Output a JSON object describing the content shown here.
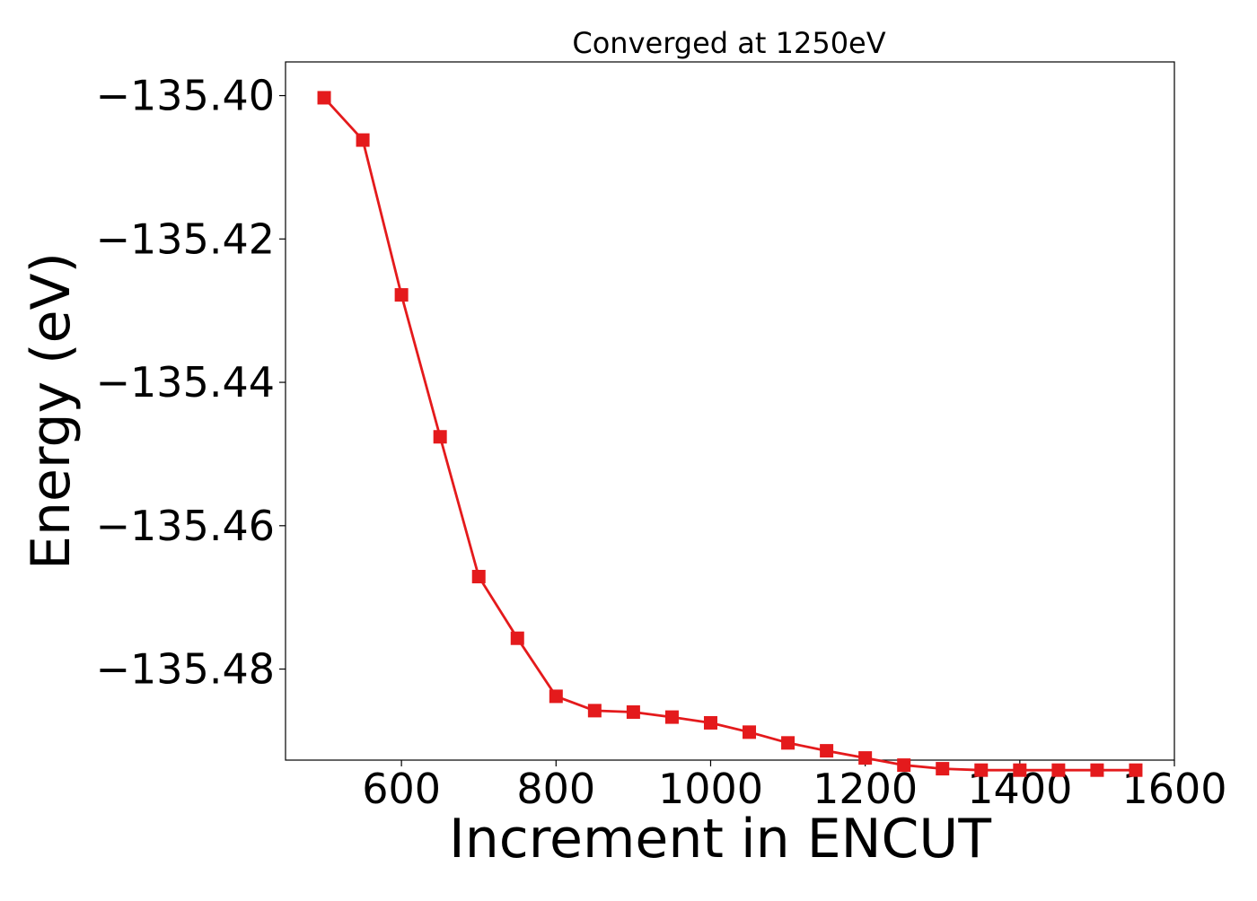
{
  "chart_data": {
    "type": "line",
    "title": "Converged at 1250eV",
    "xlabel": "Increment in ENCUT",
    "ylabel": "Energy (eV)",
    "xlim": [
      450,
      1600
    ],
    "ylim": [
      -135.4927,
      -135.3953
    ],
    "x_ticks": [
      600,
      800,
      1000,
      1200,
      1400,
      1600
    ],
    "x_tick_labels": [
      "600",
      "800",
      "1000",
      "1200",
      "1400",
      "1600"
    ],
    "y_ticks": [
      -135.4,
      -135.42,
      -135.44,
      -135.46,
      -135.48
    ],
    "y_tick_labels": [
      "−135.40",
      "−135.42",
      "−135.44",
      "−135.46",
      "−135.48"
    ],
    "grid": false,
    "series": [
      {
        "color": "#e41a1c",
        "marker": "square",
        "x": [
          500,
          550,
          600,
          650,
          700,
          750,
          800,
          850,
          900,
          950,
          1000,
          1050,
          1100,
          1150,
          1200,
          1250,
          1300,
          1350,
          1400,
          1450,
          1500,
          1550
        ],
        "y": [
          -135.4003,
          -135.4062,
          -135.4278,
          -135.4476,
          -135.4671,
          -135.4757,
          -135.4838,
          -135.4858,
          -135.486,
          -135.4867,
          -135.4875,
          -135.4888,
          -135.4903,
          -135.4914,
          -135.4924,
          -135.4934,
          -135.4939,
          -135.4941,
          -135.4941,
          -135.4941,
          -135.4941,
          -135.4941
        ]
      }
    ]
  }
}
